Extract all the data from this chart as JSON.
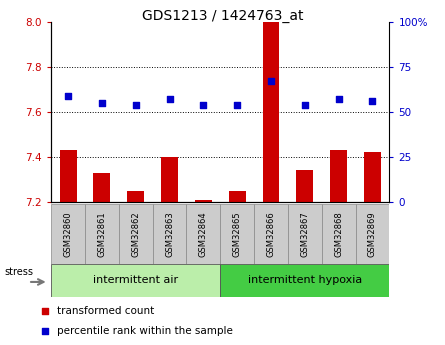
{
  "title": "GDS1213 / 1424763_at",
  "categories": [
    "GSM32860",
    "GSM32861",
    "GSM32862",
    "GSM32863",
    "GSM32864",
    "GSM32865",
    "GSM32866",
    "GSM32867",
    "GSM32868",
    "GSM32869"
  ],
  "bar_values": [
    7.43,
    7.33,
    7.25,
    7.4,
    7.21,
    7.25,
    8.0,
    7.34,
    7.43,
    7.42
  ],
  "scatter_values": [
    7.67,
    7.64,
    7.63,
    7.66,
    7.63,
    7.63,
    7.74,
    7.63,
    7.66,
    7.65
  ],
  "bar_color": "#cc0000",
  "scatter_color": "#0000cc",
  "ylim_left": [
    7.2,
    8.0
  ],
  "ylim_right": [
    0,
    100
  ],
  "yticks_left": [
    7.2,
    7.4,
    7.6,
    7.8,
    8.0
  ],
  "ytick_labels_right": [
    "0",
    "25",
    "50",
    "75",
    "100%"
  ],
  "yticks_right": [
    0,
    25,
    50,
    75,
    100
  ],
  "grid_values": [
    7.4,
    7.6,
    7.8
  ],
  "group1_label": "intermittent air",
  "group2_label": "intermittent hypoxia",
  "group_bg_color1": "#bbeeaa",
  "group_bg_color2": "#44cc44",
  "stress_label": "stress",
  "bar_width": 0.5,
  "legend_bar_label": "transformed count",
  "legend_scatter_label": "percentile rank within the sample",
  "bg_color": "#ffffff",
  "sample_box_color": "#cccccc",
  "title_fontsize": 10,
  "tick_fontsize": 7.5,
  "label_fontsize": 8,
  "legend_fontsize": 7.5
}
